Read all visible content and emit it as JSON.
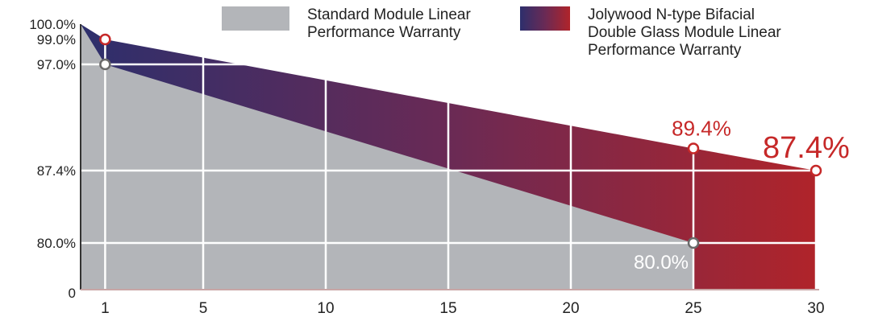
{
  "chart_data": {
    "type": "area",
    "x_ticks": [
      1,
      5,
      10,
      15,
      20,
      25,
      30
    ],
    "y_tick_labels": [
      "0",
      "80.0%",
      "87.4%",
      "97.0%",
      "99.0%",
      "100.0%"
    ],
    "xlim": [
      0,
      30
    ],
    "series": [
      {
        "name": "Standard Module Linear Performance Warranty",
        "color": "#b3b5b9",
        "points": [
          [
            0,
            100.0
          ],
          [
            1,
            97.0
          ],
          [
            25,
            80.0
          ]
        ]
      },
      {
        "name": "Jolywood N-type Bifacial Double Glass Module Linear Performance Warranty",
        "color_start": "#2d2f6c",
        "color_end": "#b0242a",
        "points": [
          [
            0,
            100.0
          ],
          [
            1,
            99.0
          ],
          [
            25,
            89.4
          ],
          [
            30,
            87.4
          ]
        ]
      }
    ],
    "annotations": [
      {
        "label": "89.4%",
        "x": 25,
        "y": 89.4,
        "color": "#c62828"
      },
      {
        "label": "87.4%",
        "x": 30,
        "y": 87.4,
        "color": "#c62828"
      },
      {
        "label": "80.0%",
        "x": 25,
        "y": 80.0,
        "color": "#ffffff"
      }
    ],
    "grid": true
  },
  "legend": {
    "standard_lines": [
      "Standard Module Linear",
      "Performance Warranty"
    ],
    "jolywood_lines": [
      "Jolywood N-type Bifacial",
      "Double Glass Module Linear",
      "Performance Warranty"
    ]
  }
}
